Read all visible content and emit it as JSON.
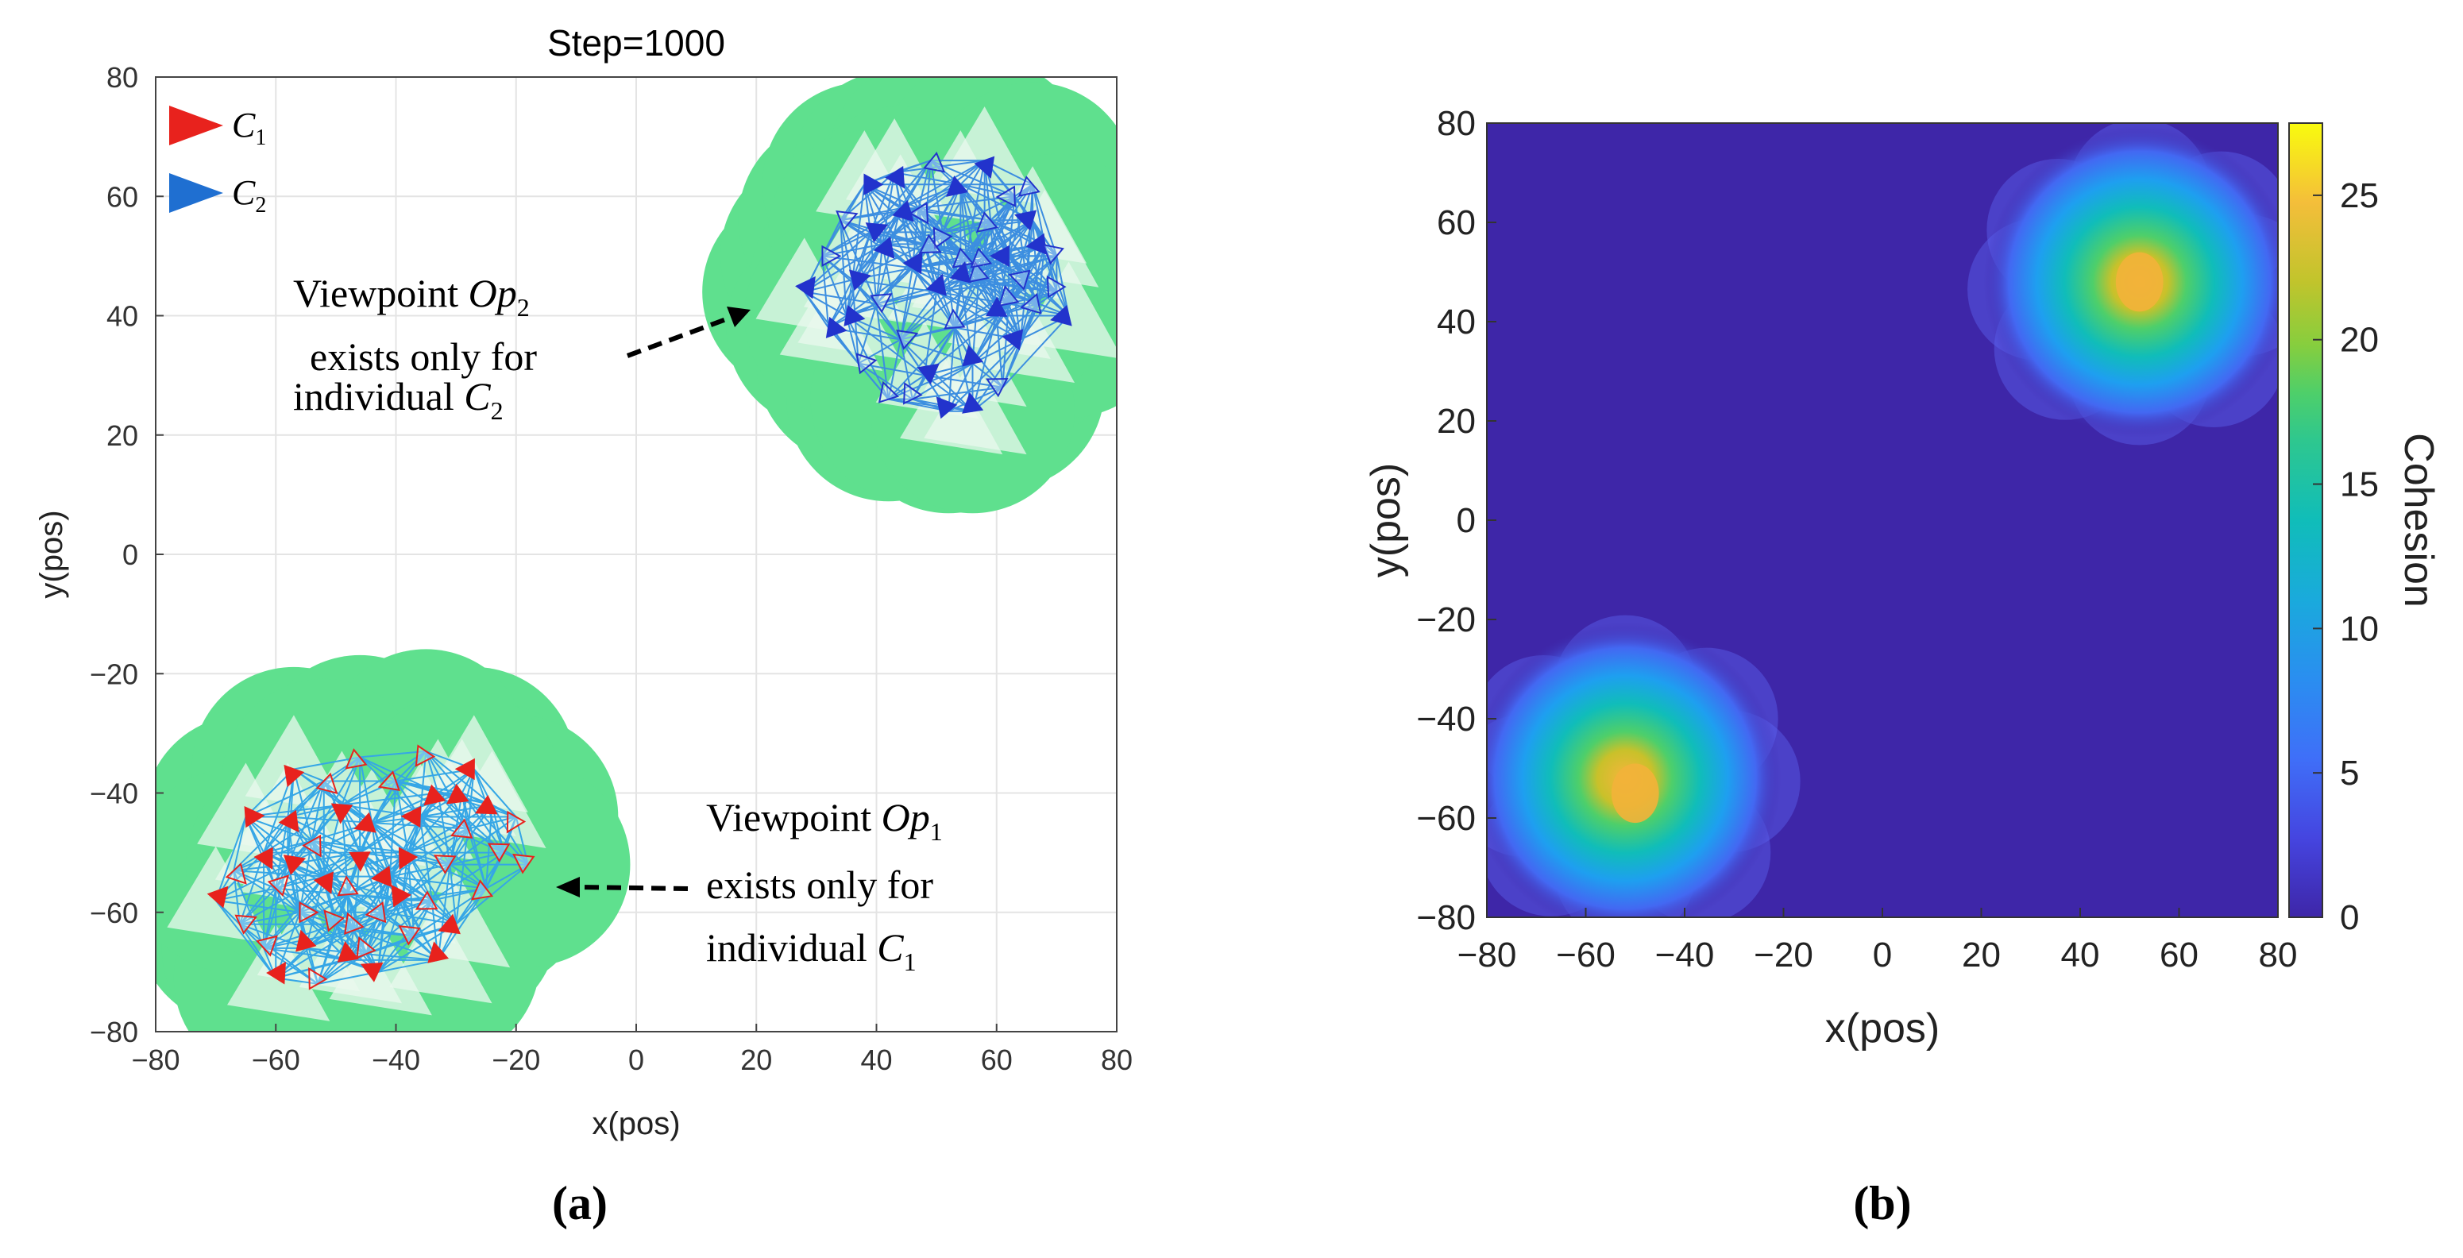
{
  "chart_data": [
    {
      "panel_label": "(a)",
      "type": "scatter",
      "title": "Step=1000",
      "xlabel": "x(pos)",
      "ylabel": "y(pos)",
      "xlim": [
        -80,
        80
      ],
      "ylim": [
        -80,
        80
      ],
      "xticks": [
        -80,
        -60,
        -40,
        -20,
        0,
        20,
        40,
        60,
        80
      ],
      "yticks": [
        -80,
        -60,
        -40,
        -20,
        0,
        20,
        40,
        60,
        80
      ],
      "xtick_labels": [
        "−80",
        "−60",
        "−40",
        "−20",
        "0",
        "20",
        "40",
        "60",
        "80"
      ],
      "ytick_labels": [
        "−80",
        "−60",
        "−40",
        "−20",
        "0",
        "20",
        "40",
        "60",
        "80"
      ],
      "grid": true,
      "legend": {
        "placement": "top-left",
        "items": [
          {
            "name": "C",
            "sub": "1",
            "color": "#e8221d"
          },
          {
            "name": "C",
            "sub": "2",
            "color": "#1f6fd1"
          }
        ]
      },
      "clusters": [
        {
          "group": "C1",
          "color": "#e8221d",
          "line_color": "#35a6e6",
          "region_color": "#5fe08e",
          "center": [
            -50,
            -55
          ],
          "points": [
            [
              -70,
              -58
            ],
            [
              -66,
              -62
            ],
            [
              -62,
              -50
            ],
            [
              -60,
              -56
            ],
            [
              -58,
              -44
            ],
            [
              -56,
              -60
            ],
            [
              -55,
              -66
            ],
            [
              -54,
              -48
            ],
            [
              -52,
              -54
            ],
            [
              -50,
              -62
            ],
            [
              -49,
              -42
            ],
            [
              -48,
              -57
            ],
            [
              -46,
              -50
            ],
            [
              -45,
              -67
            ],
            [
              -44,
              -45
            ],
            [
              -42,
              -60
            ],
            [
              -41,
              -54
            ],
            [
              -40,
              -38
            ],
            [
              -38,
              -50
            ],
            [
              -37,
              -64
            ],
            [
              -36,
              -44
            ],
            [
              -34,
              -58
            ],
            [
              -33,
              -40
            ],
            [
              -31,
              -52
            ],
            [
              -30,
              -62
            ],
            [
              -28,
              -46
            ],
            [
              -27,
              -36
            ],
            [
              -25,
              -56
            ],
            [
              -24,
              -42
            ],
            [
              -22,
              -50
            ],
            [
              -65,
              -44
            ],
            [
              -62,
              -66
            ],
            [
              -57,
              -36
            ],
            [
              -53,
              -72
            ],
            [
              -48,
              -68
            ],
            [
              -46,
              -34
            ],
            [
              -43,
              -70
            ],
            [
              -35,
              -33
            ],
            [
              -33,
              -68
            ],
            [
              -20,
              -44
            ],
            [
              -60,
              -71
            ],
            [
              -67,
              -53
            ],
            [
              -58,
              -52
            ],
            [
              -47,
              -63
            ],
            [
              -39,
              -58
            ],
            [
              -52,
              -38
            ],
            [
              -29,
              -40
            ],
            [
              -18,
              -52
            ]
          ],
          "annotation": {
            "line1": "Viewpoint ",
            "italic": "Op",
            "sub": "1",
            "line2": "exists only for",
            "line3": "individual ",
            "line3_italic": "C",
            "line3_sub": "1"
          }
        },
        {
          "group": "C2",
          "color": "#2233cc",
          "line_color": "#3c8ee0",
          "region_color": "#5fe08e",
          "center": [
            52,
            50
          ],
          "points": [
            [
              28,
              44
            ],
            [
              31,
              50
            ],
            [
              32,
              38
            ],
            [
              34,
              56
            ],
            [
              36,
              46
            ],
            [
              37,
              32
            ],
            [
              38,
              62
            ],
            [
              40,
              42
            ],
            [
              41,
              52
            ],
            [
              42,
              26
            ],
            [
              43,
              64
            ],
            [
              44,
              36
            ],
            [
              46,
              48
            ],
            [
              47,
              58
            ],
            [
              48,
              30
            ],
            [
              49,
              66
            ],
            [
              50,
              44
            ],
            [
              51,
              54
            ],
            [
              52,
              24
            ],
            [
              53,
              38
            ],
            [
              54,
              62
            ],
            [
              55,
              50
            ],
            [
              56,
              32
            ],
            [
              57,
              46
            ],
            [
              58,
              66
            ],
            [
              59,
              56
            ],
            [
              60,
              40
            ],
            [
              61,
              28
            ],
            [
              62,
              50
            ],
            [
              63,
              60
            ],
            [
              64,
              36
            ],
            [
              65,
              46
            ],
            [
              66,
              56
            ],
            [
              67,
              42
            ],
            [
              68,
              52
            ],
            [
              70,
              44
            ],
            [
              72,
              40
            ],
            [
              48,
              52
            ],
            [
              54,
              46
            ],
            [
              58,
              50
            ],
            [
              44,
              58
            ],
            [
              62,
              42
            ],
            [
              39,
              54
            ],
            [
              66,
              62
            ],
            [
              35,
              40
            ],
            [
              46,
              26
            ],
            [
              56,
              24
            ],
            [
              70,
              50
            ]
          ],
          "annotation": {
            "line1": "Viewpoint ",
            "italic": "Op",
            "sub": "2",
            "line2": "exists only for",
            "line3": "individual ",
            "line3_italic": "C",
            "line3_sub": "2"
          }
        }
      ]
    },
    {
      "panel_label": "(b)",
      "type": "heatmap",
      "title": "",
      "xlabel": "x(pos)",
      "ylabel": "y(pos)",
      "xlim": [
        -80,
        80
      ],
      "ylim": [
        -80,
        80
      ],
      "xticks": [
        -80,
        -60,
        -40,
        -20,
        0,
        20,
        40,
        60,
        80
      ],
      "yticks": [
        -80,
        -60,
        -40,
        -20,
        0,
        20,
        40,
        60,
        80
      ],
      "xtick_labels": [
        "−80",
        "−60",
        "−40",
        "−20",
        "0",
        "20",
        "40",
        "60",
        "80"
      ],
      "ytick_labels": [
        "−80",
        "−60",
        "−40",
        "−20",
        "0",
        "20",
        "40",
        "60",
        "80"
      ],
      "colorbar": {
        "label": "Cohesion",
        "range": [
          0,
          27.5
        ],
        "ticks": [
          0,
          5,
          10,
          15,
          20,
          25
        ],
        "tick_labels": [
          "0",
          "5",
          "10",
          "15",
          "20",
          "25"
        ],
        "colormap": "parula"
      },
      "background_value": 0,
      "hotspots": [
        {
          "center": [
            -52,
            -52
          ],
          "radius": 30,
          "peak": 24,
          "core": [
            -50,
            -55
          ]
        },
        {
          "center": [
            52,
            48
          ],
          "radius": 30,
          "peak": 25,
          "core": [
            52,
            48
          ]
        }
      ]
    }
  ]
}
